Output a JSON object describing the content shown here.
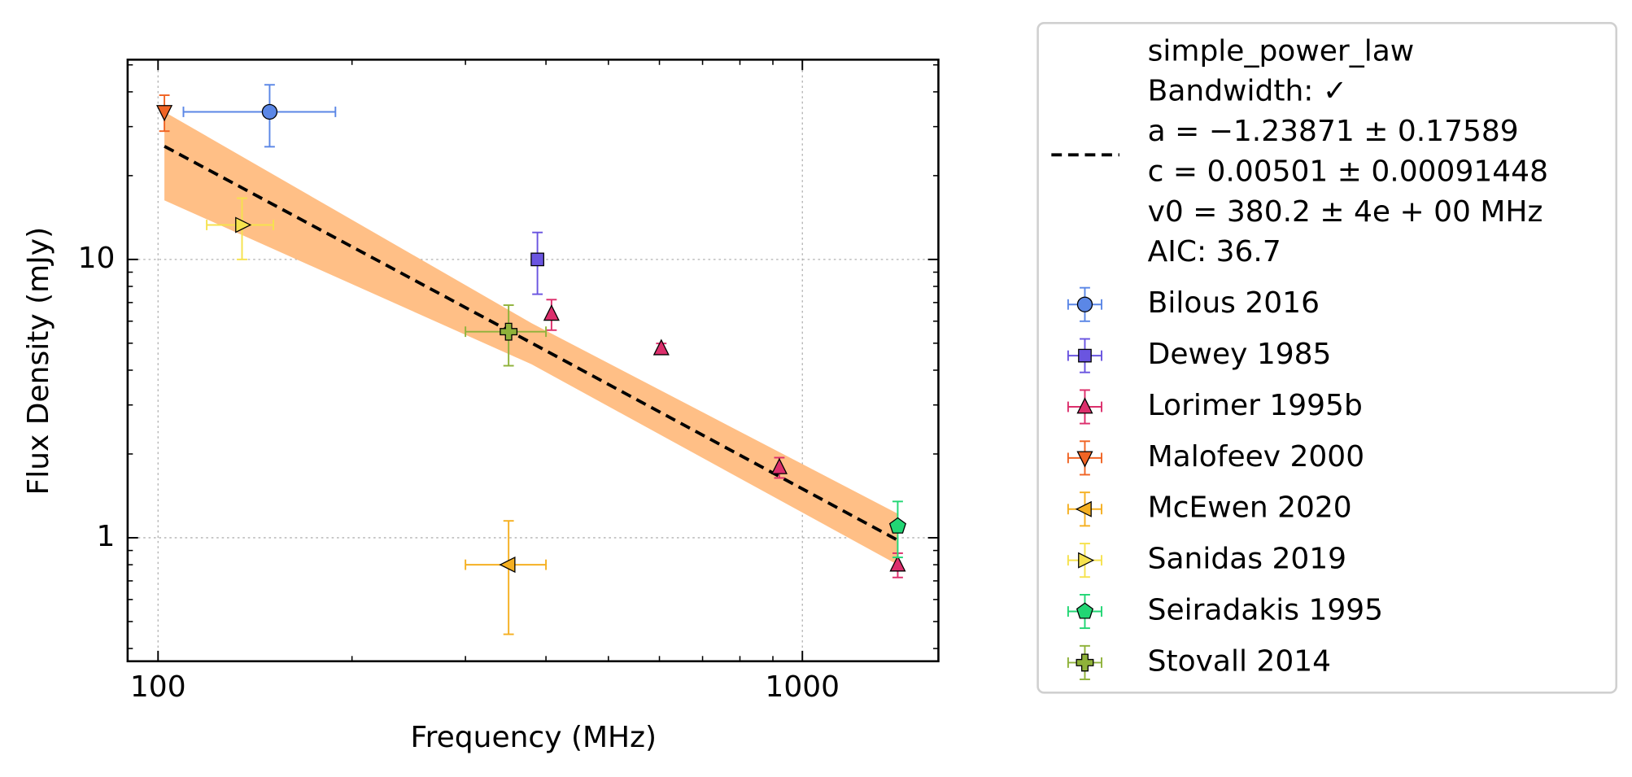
{
  "chart_data": {
    "type": "scatter",
    "x_label": "Frequency (MHz)",
    "y_label": "Flux Density (mJy)",
    "xscale": "log",
    "yscale": "log",
    "grid": true,
    "xlim": [
      89.7,
      1626
    ],
    "ylim": [
      0.36,
      52.2
    ],
    "xticks": [
      100,
      1000
    ],
    "yticks": [
      1,
      10
    ],
    "xminorticks": [
      200,
      300,
      400,
      500,
      600,
      700,
      800,
      900
    ],
    "yminorticks": [
      0.4,
      0.5,
      0.6,
      0.7,
      0.8,
      0.9,
      2,
      3,
      4,
      5,
      6,
      7,
      8,
      9,
      20,
      30,
      40,
      50
    ],
    "fit": {
      "color": "#000000",
      "band_color": "#ffbf86",
      "label_lines": [
        "simple_power_law",
        "Bandwidth: ✓",
        "a = −1.23871 ± 0.17589",
        "c = 0.00501 ± 0.00091448",
        "v0 = 380.2 ± 4e + 00 MHz",
        "AIC: 36.7"
      ],
      "x": [
        102.3,
        380,
        1406
      ],
      "values": [
        25.5,
        5.01,
        0.98
      ],
      "upper": [
        33.9,
        5.9,
        1.22
      ],
      "lower": [
        16.3,
        4.2,
        0.8
      ]
    },
    "series": [
      {
        "name": "Bilous 2016",
        "color": "#5b87e6",
        "marker": "circle",
        "x": [
          149
        ],
        "values": [
          33.9
        ],
        "x_err": [
          39.5
        ],
        "y_err": [
          8.5
        ]
      },
      {
        "name": "Dewey 1985",
        "color": "#6a55e0",
        "marker": "square",
        "x": [
          388
        ],
        "values": [
          10
        ],
        "x_err": [
          null
        ],
        "y_err": [
          2.5
        ]
      },
      {
        "name": "Lorimer 1995b",
        "color": "#dc2f6c",
        "marker": "triangle-up",
        "x": [
          408,
          604,
          921,
          1406
        ],
        "values": [
          6.37,
          4.79,
          1.79,
          0.8
        ],
        "x_err": [
          null,
          null,
          null,
          null
        ],
        "y_err": [
          0.8,
          0.2,
          0.15,
          0.08
        ]
      },
      {
        "name": "Malofeev 2000",
        "color": "#f06424",
        "marker": "triangle-down",
        "x": [
          102.3
        ],
        "values": [
          33.9
        ],
        "x_err": [
          null
        ],
        "y_err": [
          5
        ]
      },
      {
        "name": "McEwen 2020",
        "color": "#f5b022",
        "marker": "triangle-left",
        "x": [
          350
        ],
        "values": [
          0.8
        ],
        "x_err": [
          50
        ],
        "y_err": [
          0.35
        ]
      },
      {
        "name": "Sanidas 2019",
        "color": "#f6e24e",
        "marker": "triangle-right",
        "x": [
          135
        ],
        "values": [
          13.3
        ],
        "x_err": [
          16
        ],
        "y_err": [
          3.3
        ]
      },
      {
        "name": "Seiradakis 1995",
        "color": "#22d674",
        "marker": "pentagon",
        "x": [
          1406
        ],
        "values": [
          1.1
        ],
        "x_err": [
          null
        ],
        "y_err": [
          0.25
        ]
      },
      {
        "name": "Stovall 2014",
        "color": "#8fb23a",
        "marker": "plus",
        "x": [
          350
        ],
        "values": [
          5.5
        ],
        "x_err": [
          50
        ],
        "y_err": [
          1.35
        ]
      }
    ]
  }
}
